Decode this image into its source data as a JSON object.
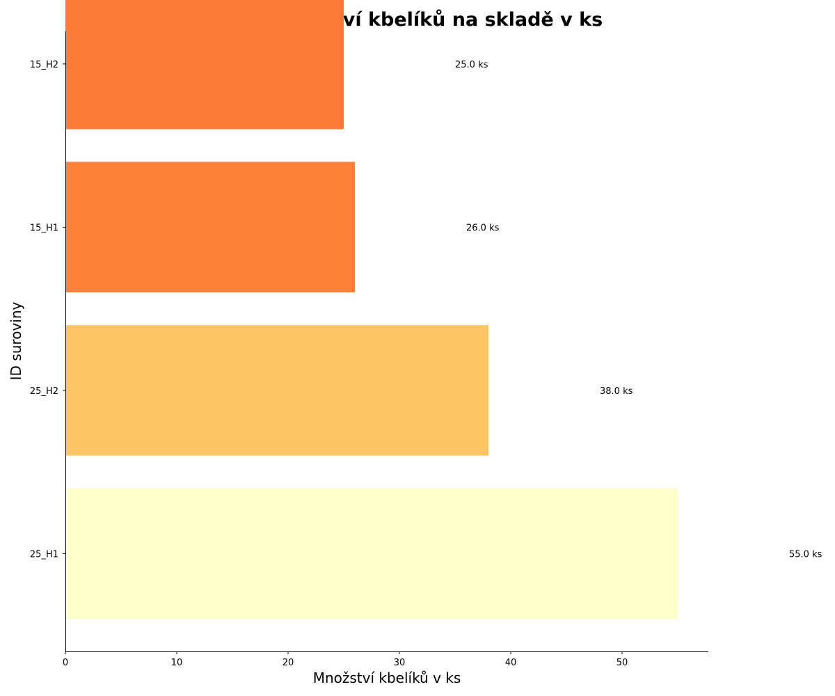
{
  "chart_data": {
    "type": "bar",
    "orientation": "horizontal",
    "title": "Aktuální množství kbelíků na skladě v ks",
    "xlabel": "Množství kbelíků v ks",
    "ylabel": "ID suroviny",
    "categories": [
      "25_H1",
      "25_H2",
      "15_H1",
      "15_H2"
    ],
    "values": [
      55.0,
      38.0,
      26.0,
      25.0
    ],
    "data_labels": [
      "55.0 ks",
      "38.0 ks",
      "26.0 ks",
      "25.0 ks"
    ],
    "colors": [
      "#ffffcc",
      "#fec565",
      "#fd8139",
      "#fd7b38"
    ],
    "xlim": [
      0,
      57.75
    ],
    "xticks": [
      0,
      10,
      20,
      30,
      40,
      50
    ],
    "xtick_labels": [
      "0",
      "10",
      "20",
      "30",
      "40",
      "50"
    ],
    "grid": false,
    "legend": "none"
  }
}
